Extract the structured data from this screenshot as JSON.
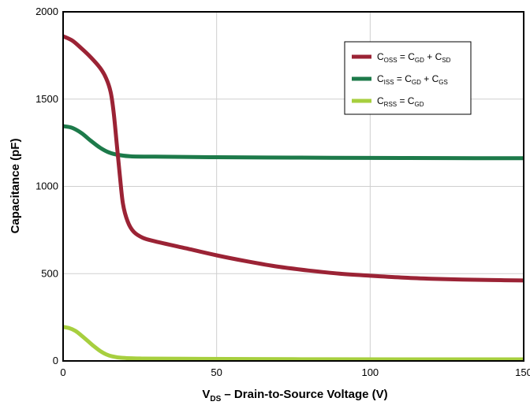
{
  "chart_data": {
    "type": "line",
    "xlabel": {
      "main": "V",
      "sub": "DS",
      "rest": " – Drain-to-Source Voltage (V)"
    },
    "ylabel": "Capacitance (pF)",
    "xlim": [
      0,
      150
    ],
    "ylim": [
      0,
      2000
    ],
    "xticks": [
      "0",
      "50",
      "100",
      "150"
    ],
    "yticks": [
      "0",
      "500",
      "1000",
      "1500",
      "2000"
    ],
    "grid": true,
    "legend_position": "top-right",
    "series": [
      {
        "name": "C_OSS = C_GD + C_SD",
        "legend": [
          [
            "C",
            ""
          ],
          [
            "OSS",
            "sub"
          ],
          [
            " = C",
            ""
          ],
          [
            "GD",
            "sub"
          ],
          [
            " + C",
            ""
          ],
          [
            "SD",
            "sub"
          ]
        ],
        "color": "#9b2335",
        "points": [
          [
            0,
            1860
          ],
          [
            3,
            1835
          ],
          [
            6,
            1790
          ],
          [
            9,
            1740
          ],
          [
            12,
            1680
          ],
          [
            14,
            1620
          ],
          [
            15.5,
            1540
          ],
          [
            16.5,
            1420
          ],
          [
            17.5,
            1240
          ],
          [
            18.5,
            1060
          ],
          [
            19.5,
            900
          ],
          [
            21,
            800
          ],
          [
            23,
            740
          ],
          [
            26,
            705
          ],
          [
            30,
            685
          ],
          [
            40,
            645
          ],
          [
            50,
            605
          ],
          [
            60,
            570
          ],
          [
            70,
            540
          ],
          [
            80,
            518
          ],
          [
            90,
            500
          ],
          [
            100,
            488
          ],
          [
            110,
            478
          ],
          [
            120,
            471
          ],
          [
            130,
            466
          ],
          [
            140,
            463
          ],
          [
            150,
            461
          ]
        ]
      },
      {
        "name": "C_ISS = C_GD + C_GS",
        "legend": [
          [
            "C",
            ""
          ],
          [
            "ISS",
            "sub"
          ],
          [
            " = C",
            ""
          ],
          [
            "GD",
            "sub"
          ],
          [
            " + C",
            ""
          ],
          [
            "GS",
            "sub"
          ]
        ],
        "color": "#1d7a4a",
        "points": [
          [
            0,
            1345
          ],
          [
            3,
            1335
          ],
          [
            6,
            1305
          ],
          [
            9,
            1262
          ],
          [
            12,
            1222
          ],
          [
            15,
            1194
          ],
          [
            18,
            1180
          ],
          [
            22,
            1172
          ],
          [
            30,
            1170
          ],
          [
            50,
            1167
          ],
          [
            75,
            1165
          ],
          [
            100,
            1163
          ],
          [
            125,
            1162
          ],
          [
            150,
            1161
          ]
        ]
      },
      {
        "name": "C_RSS = C_GD",
        "legend": [
          [
            "C",
            ""
          ],
          [
            "RSS",
            "sub"
          ],
          [
            " = C",
            ""
          ],
          [
            "GD",
            "sub"
          ]
        ],
        "color": "#a7cf3f",
        "points": [
          [
            0,
            195
          ],
          [
            2,
            188
          ],
          [
            4,
            172
          ],
          [
            6,
            145
          ],
          [
            8,
            115
          ],
          [
            10,
            85
          ],
          [
            12,
            58
          ],
          [
            14,
            38
          ],
          [
            16,
            26
          ],
          [
            19,
            18
          ],
          [
            25,
            14
          ],
          [
            40,
            12
          ],
          [
            75,
            10
          ],
          [
            110,
            9
          ],
          [
            150,
            9
          ]
        ]
      }
    ]
  }
}
